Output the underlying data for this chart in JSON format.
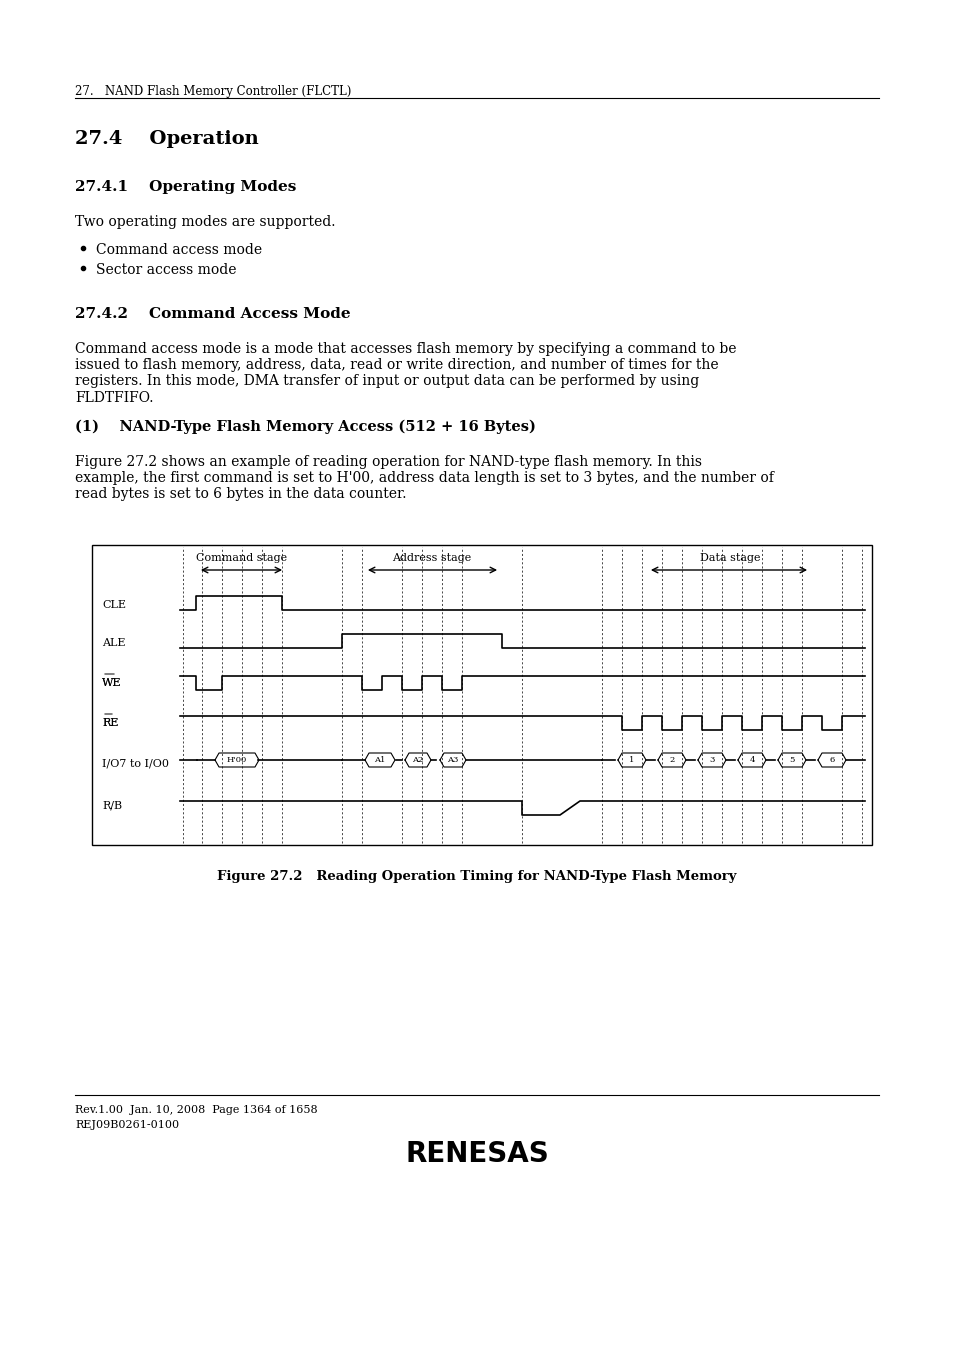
{
  "bg_color": "#ffffff",
  "page_header": "27.   NAND Flash Memory Controller (FLCTL)",
  "section_title": "27.4    Operation",
  "sub_section1_title": "27.4.1    Operating Modes",
  "sub_section1_body": "Two operating modes are supported.",
  "bullet1": "Command access mode",
  "bullet2": "Sector access mode",
  "sub_section2_title": "27.4.2    Command Access Mode",
  "sub_section2_body": "Command access mode is a mode that accesses flash memory by specifying a command to be\nissued to flash memory, address, data, read or write direction, and number of times for the\nregisters. In this mode, DMA transfer of input or output data can be performed by using\nFLDTFIFO.",
  "sub_section3_title": "(1)    NAND-Type Flash Memory Access (512 + 16 Bytes)",
  "sub_section3_body": "Figure 27.2 shows an example of reading operation for NAND-type flash memory. In this\nexample, the first command is set to H'00, address data length is set to 3 bytes, and the number of\nread bytes is set to 6 bytes in the data counter.",
  "figure_caption": "Figure 27.2   Reading Operation Timing for NAND-Type Flash Memory",
  "footer_line1": "Rev.1.00  Jan. 10, 2008  Page 1364 of 1658",
  "footer_line2": "REJ09B0261-0100"
}
